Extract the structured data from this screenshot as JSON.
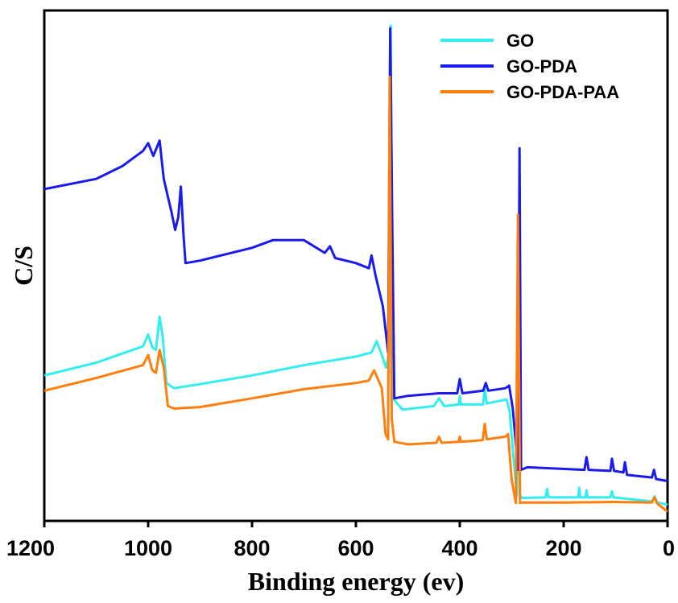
{
  "chart_data": {
    "type": "line",
    "title": "",
    "xlabel": "Binding energy (ev)",
    "ylabel": "C/S",
    "xlim": [
      1200,
      0
    ],
    "ylim": [
      0,
      100
    ],
    "x_reversed": true,
    "y_ticks_shown": false,
    "grid": false,
    "legend_position": "top-right",
    "x_ticks": [
      1200,
      1000,
      800,
      600,
      400,
      200,
      0
    ],
    "x_tick_labels": [
      "1200",
      "1000",
      "800",
      "600",
      "400",
      "200",
      "0"
    ],
    "series": [
      {
        "name": "GO",
        "color": "#33EEEE",
        "points": [
          [
            1200,
            28.5
          ],
          [
            1100,
            31.0
          ],
          [
            1010,
            34.2
          ],
          [
            1000,
            36.5
          ],
          [
            992,
            34.0
          ],
          [
            985,
            33.5
          ],
          [
            978,
            40.0
          ],
          [
            972,
            36.0
          ],
          [
            965,
            27.0
          ],
          [
            950,
            26.0
          ],
          [
            900,
            26.8
          ],
          [
            800,
            28.5
          ],
          [
            700,
            30.5
          ],
          [
            600,
            32.2
          ],
          [
            570,
            33.0
          ],
          [
            560,
            35.2
          ],
          [
            550,
            32.5
          ],
          [
            542,
            30.0
          ],
          [
            536,
            33.0
          ],
          [
            533,
            97.0
          ],
          [
            529,
            24.0
          ],
          [
            510,
            21.8
          ],
          [
            450,
            22.5
          ],
          [
            440,
            24.0
          ],
          [
            430,
            22.5
          ],
          [
            402,
            22.8
          ],
          [
            400,
            24.5
          ],
          [
            398,
            22.8
          ],
          [
            355,
            22.8
          ],
          [
            352,
            26.0
          ],
          [
            348,
            23.0
          ],
          [
            310,
            23.8
          ],
          [
            304,
            21.5
          ],
          [
            298,
            14.0
          ],
          [
            290,
            5.0
          ],
          [
            287,
            27.5
          ],
          [
            284,
            5.0
          ],
          [
            280,
            4.5
          ],
          [
            235,
            4.6
          ],
          [
            232,
            6.3
          ],
          [
            229,
            4.6
          ],
          [
            172,
            4.6
          ],
          [
            170,
            6.5
          ],
          [
            168,
            4.6
          ],
          [
            158,
            4.6
          ],
          [
            156,
            6.0
          ],
          [
            154,
            4.6
          ],
          [
            110,
            4.6
          ],
          [
            107,
            5.8
          ],
          [
            104,
            4.6
          ],
          [
            30,
            3.8
          ],
          [
            25,
            4.8
          ],
          [
            20,
            3.6
          ],
          [
            0,
            3.2
          ]
        ]
      },
      {
        "name": "GO-PDA",
        "color": "#1A1AEE",
        "points": [
          [
            1200,
            65.0
          ],
          [
            1100,
            67.0
          ],
          [
            1050,
            69.5
          ],
          [
            1010,
            72.5
          ],
          [
            1000,
            74.0
          ],
          [
            990,
            71.5
          ],
          [
            978,
            74.5
          ],
          [
            970,
            67.0
          ],
          [
            962,
            63.5
          ],
          [
            955,
            60.5
          ],
          [
            948,
            57.0
          ],
          [
            942,
            59.5
          ],
          [
            937,
            65.5
          ],
          [
            932,
            56.0
          ],
          [
            928,
            50.5
          ],
          [
            900,
            51.0
          ],
          [
            800,
            53.5
          ],
          [
            760,
            55.0
          ],
          [
            700,
            55.0
          ],
          [
            660,
            52.5
          ],
          [
            650,
            53.8
          ],
          [
            640,
            51.5
          ],
          [
            600,
            50.5
          ],
          [
            575,
            49.5
          ],
          [
            570,
            52.0
          ],
          [
            562,
            48.0
          ],
          [
            548,
            42.0
          ],
          [
            538,
            33.0
          ],
          [
            534,
            96.5
          ],
          [
            530,
            57.0
          ],
          [
            526,
            24.0
          ],
          [
            500,
            24.5
          ],
          [
            440,
            25.0
          ],
          [
            405,
            25.0
          ],
          [
            400,
            27.8
          ],
          [
            395,
            25.0
          ],
          [
            355,
            25.5
          ],
          [
            350,
            27.0
          ],
          [
            345,
            25.5
          ],
          [
            312,
            26.0
          ],
          [
            305,
            26.5
          ],
          [
            298,
            22.0
          ],
          [
            292,
            15.0
          ],
          [
            288,
            10.0
          ],
          [
            285,
            73.0
          ],
          [
            282,
            10.0
          ],
          [
            270,
            10.5
          ],
          [
            160,
            10.0
          ],
          [
            156,
            12.5
          ],
          [
            152,
            10.0
          ],
          [
            110,
            9.8
          ],
          [
            107,
            12.2
          ],
          [
            103,
            9.8
          ],
          [
            85,
            9.5
          ],
          [
            82,
            11.5
          ],
          [
            78,
            9.0
          ],
          [
            30,
            8.5
          ],
          [
            26,
            10.0
          ],
          [
            22,
            8.2
          ],
          [
            0,
            7.8
          ]
        ]
      },
      {
        "name": "GO-PDA-PAA",
        "color": "#FF7F0E",
        "points": [
          [
            1200,
            25.5
          ],
          [
            1100,
            28.0
          ],
          [
            1010,
            30.5
          ],
          [
            1000,
            32.5
          ],
          [
            992,
            29.5
          ],
          [
            985,
            29.0
          ],
          [
            978,
            33.5
          ],
          [
            970,
            30.0
          ],
          [
            962,
            22.5
          ],
          [
            950,
            22.0
          ],
          [
            900,
            22.3
          ],
          [
            800,
            24.0
          ],
          [
            700,
            25.8
          ],
          [
            600,
            27.0
          ],
          [
            575,
            27.5
          ],
          [
            565,
            29.5
          ],
          [
            550,
            26.0
          ],
          [
            543,
            17.0
          ],
          [
            538,
            16.0
          ],
          [
            535,
            87.0
          ],
          [
            531,
            20.0
          ],
          [
            526,
            15.5
          ],
          [
            500,
            15.0
          ],
          [
            445,
            15.3
          ],
          [
            440,
            16.5
          ],
          [
            435,
            15.3
          ],
          [
            402,
            15.5
          ],
          [
            400,
            16.5
          ],
          [
            398,
            15.5
          ],
          [
            356,
            15.8
          ],
          [
            352,
            19.0
          ],
          [
            348,
            16.0
          ],
          [
            312,
            16.5
          ],
          [
            307,
            17.0
          ],
          [
            300,
            8.0
          ],
          [
            292,
            3.5
          ],
          [
            288,
            60.0
          ],
          [
            284,
            3.5
          ],
          [
            278,
            3.6
          ],
          [
            200,
            3.6
          ],
          [
            100,
            3.7
          ],
          [
            30,
            3.6
          ],
          [
            25,
            4.6
          ],
          [
            20,
            3.4
          ],
          [
            0,
            1.8
          ]
        ]
      }
    ]
  }
}
